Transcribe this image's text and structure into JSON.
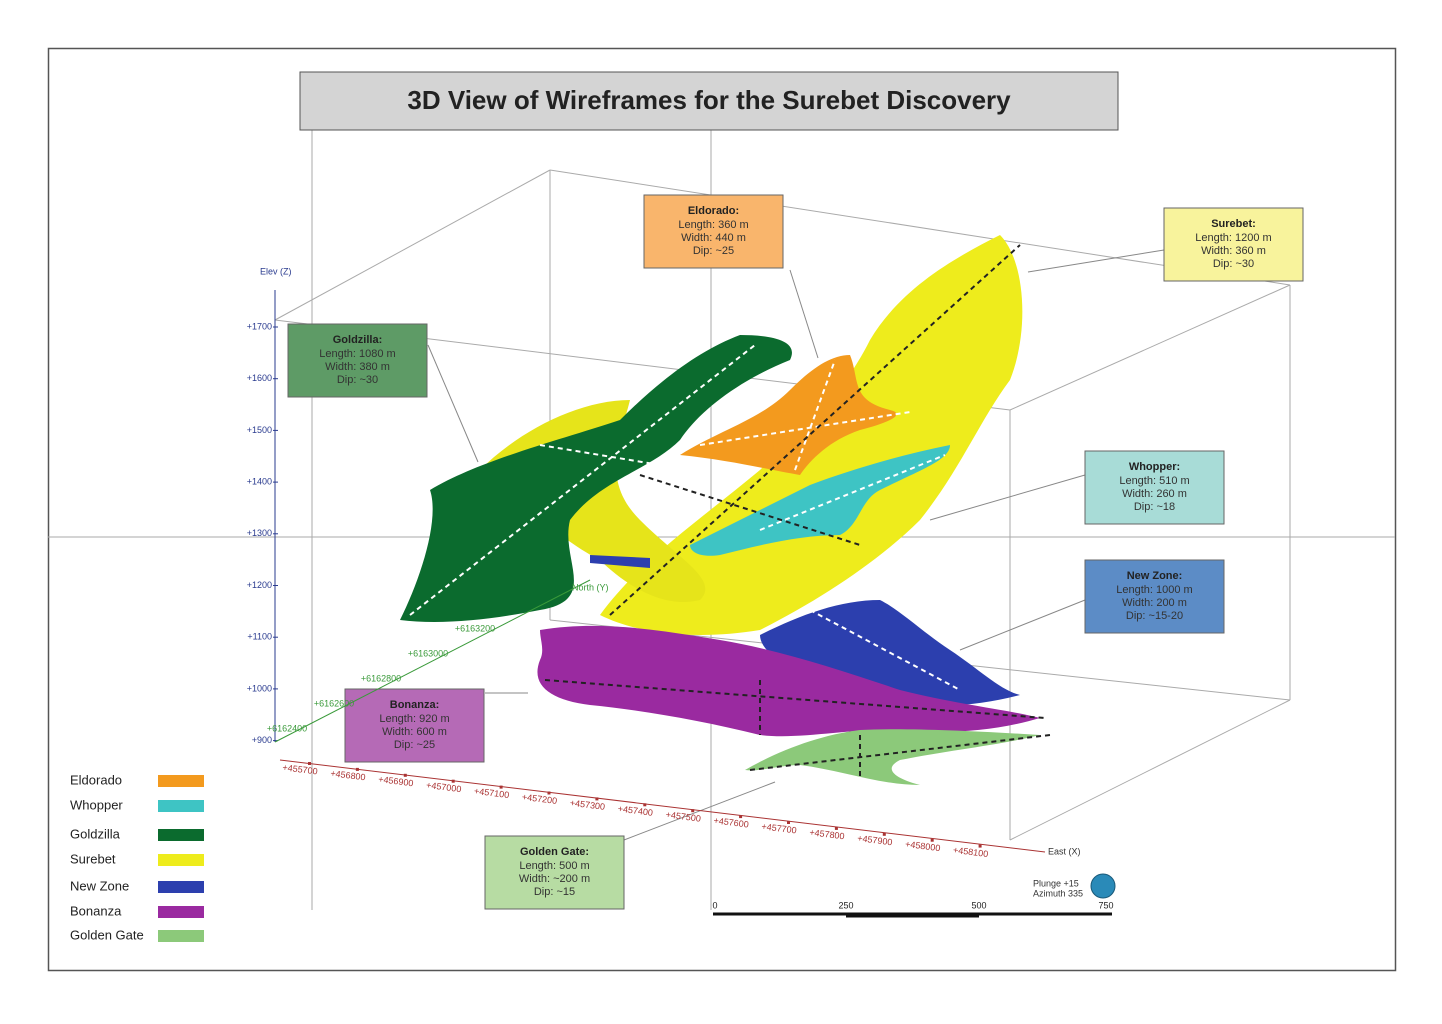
{
  "title": "3D View of Wireframes for the Surebet Discovery",
  "zones": [
    {
      "name": "Eldorado",
      "color": "#f39a1e",
      "box_color": "#f9b56c",
      "info": {
        "heading": "Eldorado:",
        "length": "Length: 360 m",
        "width": "Width: 440 m",
        "dip": "Dip: ~25"
      }
    },
    {
      "name": "Whopper",
      "color": "#3ec4c4",
      "box_color": "#a8dcd7",
      "info": {
        "heading": "Whopper:",
        "length": "Length: 510 m",
        "width": "Width: 260 m",
        "dip": "Dip: ~18"
      }
    },
    {
      "name": "Goldzilla",
      "color": "#0b6b2e",
      "box_color": "#5e9b66",
      "info": {
        "heading": "Goldzilla:",
        "length": "Length: 1080 m",
        "width": "Width: 380 m",
        "dip": "Dip: ~30"
      }
    },
    {
      "name": "Surebet",
      "color": "#eeec1c",
      "box_color": "#f8f39c",
      "info": {
        "heading": "Surebet:",
        "length": "Length: 1200 m",
        "width": "Width: 360 m",
        "dip": "Dip: ~30"
      }
    },
    {
      "name": "New Zone",
      "color": "#2c3fae",
      "box_color": "#5c8cc6",
      "info": {
        "heading": "New Zone:",
        "length": "Length: 1000 m",
        "width": "Width: 200 m",
        "dip": "Dip: ~15-20"
      }
    },
    {
      "name": "Bonanza",
      "color": "#9a2aa0",
      "box_color": "#b56ab6",
      "info": {
        "heading": "Bonanza:",
        "length": "Length: 920 m",
        "width": "Width: 600 m",
        "dip": "Dip: ~25"
      }
    },
    {
      "name": "Golden Gate",
      "color": "#8cc97a",
      "box_color": "#b7dca3",
      "info": {
        "heading": "Golden Gate:",
        "length": "Length: 500 m",
        "width": "Width: ~200 m",
        "dip": "Dip: ~15"
      }
    }
  ],
  "axes": {
    "elevation": {
      "label": "Elev (Z)",
      "ticks": [
        "+1700",
        "+1600",
        "+1500",
        "+1400",
        "+1300",
        "+1200",
        "+1100",
        "+1000",
        "+900"
      ]
    },
    "north": {
      "label": "North (Y)",
      "ticks": [
        "+6162400",
        "+6162600",
        "+6162800",
        "+6163000",
        "+6163200"
      ]
    },
    "east": {
      "label": "East (X)",
      "ticks": [
        "+455700",
        "+456800",
        "+456900",
        "+457000",
        "+457100",
        "+457200",
        "+457300",
        "+457400",
        "+457500",
        "+457600",
        "+457700",
        "+457800",
        "+457900",
        "+458000",
        "+458100"
      ]
    }
  },
  "scale_bar": {
    "ticks": [
      "0",
      "250",
      "500",
      "750"
    ]
  },
  "view": {
    "plunge": "Plunge +15",
    "azimuth": "Azimuth 335"
  }
}
